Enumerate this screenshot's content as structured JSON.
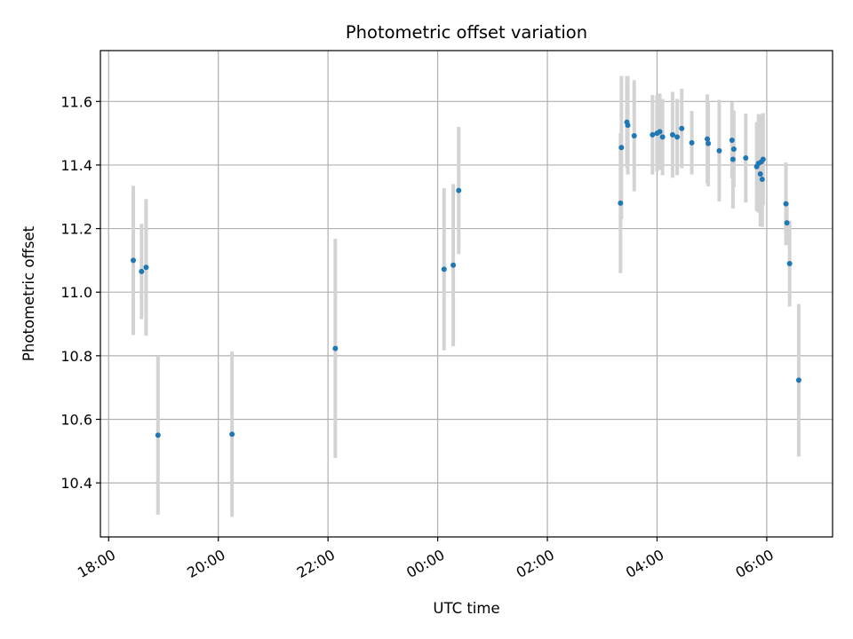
{
  "chart_data": {
    "type": "scatter",
    "title": "Photometric offset variation",
    "xlabel": "UTC time",
    "ylabel": "Photometric offset",
    "x_is_time": true,
    "x_reference_date": "day 1 starts at 00:00",
    "xlim": [
      "17:51",
      "07:12"
    ],
    "ylim": [
      10.23,
      11.76
    ],
    "x_ticks": [
      "18:00",
      "20:00",
      "22:00",
      "00:00",
      "02:00",
      "04:00",
      "06:00"
    ],
    "y_ticks": [
      "10.4",
      "10.6",
      "10.8",
      "11.0",
      "11.2",
      "11.4",
      "11.6"
    ],
    "grid": true,
    "colors": {
      "marker": "#1f77b4",
      "errorbar": "#d3d3d3",
      "grid": "#b0b0b0"
    },
    "points": [
      {
        "x": "18:27",
        "y": 11.1,
        "err": 0.235
      },
      {
        "x": "18:36",
        "y": 11.065,
        "err": 0.15
      },
      {
        "x": "18:41",
        "y": 11.078,
        "err": 0.215
      },
      {
        "x": "18:54",
        "y": 10.55,
        "err": 0.25
      },
      {
        "x": "20:15",
        "y": 10.553,
        "err": 0.26
      },
      {
        "x": "22:08",
        "y": 10.823,
        "err": 0.345
      },
      {
        "x": "00:07",
        "y": 11.072,
        "err": 0.255
      },
      {
        "x": "00:17",
        "y": 11.085,
        "err": 0.255
      },
      {
        "x": "00:23",
        "y": 11.32,
        "err": 0.2
      },
      {
        "x": "03:20",
        "y": 11.28,
        "err": 0.22
      },
      {
        "x": "03:21",
        "y": 11.455,
        "err": 0.225
      },
      {
        "x": "03:27",
        "y": 11.535,
        "err": 0.145
      },
      {
        "x": "03:28",
        "y": 11.525,
        "err": 0.155
      },
      {
        "x": "03:35",
        "y": 11.492,
        "err": 0.175
      },
      {
        "x": "03:55",
        "y": 11.495,
        "err": 0.125
      },
      {
        "x": "04:00",
        "y": 11.5,
        "err": 0.12
      },
      {
        "x": "04:03",
        "y": 11.505,
        "err": 0.12
      },
      {
        "x": "04:06",
        "y": 11.488,
        "err": 0.12
      },
      {
        "x": "04:17",
        "y": 11.495,
        "err": 0.135
      },
      {
        "x": "04:22",
        "y": 11.488,
        "err": 0.12
      },
      {
        "x": "04:27",
        "y": 11.515,
        "err": 0.125
      },
      {
        "x": "04:38",
        "y": 11.47,
        "err": 0.1
      },
      {
        "x": "04:55",
        "y": 11.482,
        "err": 0.14
      },
      {
        "x": "04:56",
        "y": 11.468,
        "err": 0.135
      },
      {
        "x": "05:08",
        "y": 11.445,
        "err": 0.16
      },
      {
        "x": "05:22",
        "y": 11.478,
        "err": 0.12
      },
      {
        "x": "05:23",
        "y": 11.418,
        "err": 0.155
      },
      {
        "x": "05:24",
        "y": 11.45,
        "err": 0.12
      },
      {
        "x": "05:37",
        "y": 11.422,
        "err": 0.14
      },
      {
        "x": "05:49",
        "y": 11.395,
        "err": 0.14
      },
      {
        "x": "05:51",
        "y": 11.405,
        "err": 0.155
      },
      {
        "x": "05:53",
        "y": 11.372,
        "err": 0.165
      },
      {
        "x": "05:54",
        "y": 11.41,
        "err": 0.15
      },
      {
        "x": "05:55",
        "y": 11.355,
        "err": 0.15
      },
      {
        "x": "05:56",
        "y": 11.418,
        "err": 0.145
      },
      {
        "x": "06:21",
        "y": 11.278,
        "err": 0.13
      },
      {
        "x": "06:22",
        "y": 11.218,
        "err": 0.065
      },
      {
        "x": "06:25",
        "y": 11.09,
        "err": 0.135
      },
      {
        "x": "06:35",
        "y": 10.723,
        "err": 0.24
      }
    ]
  }
}
